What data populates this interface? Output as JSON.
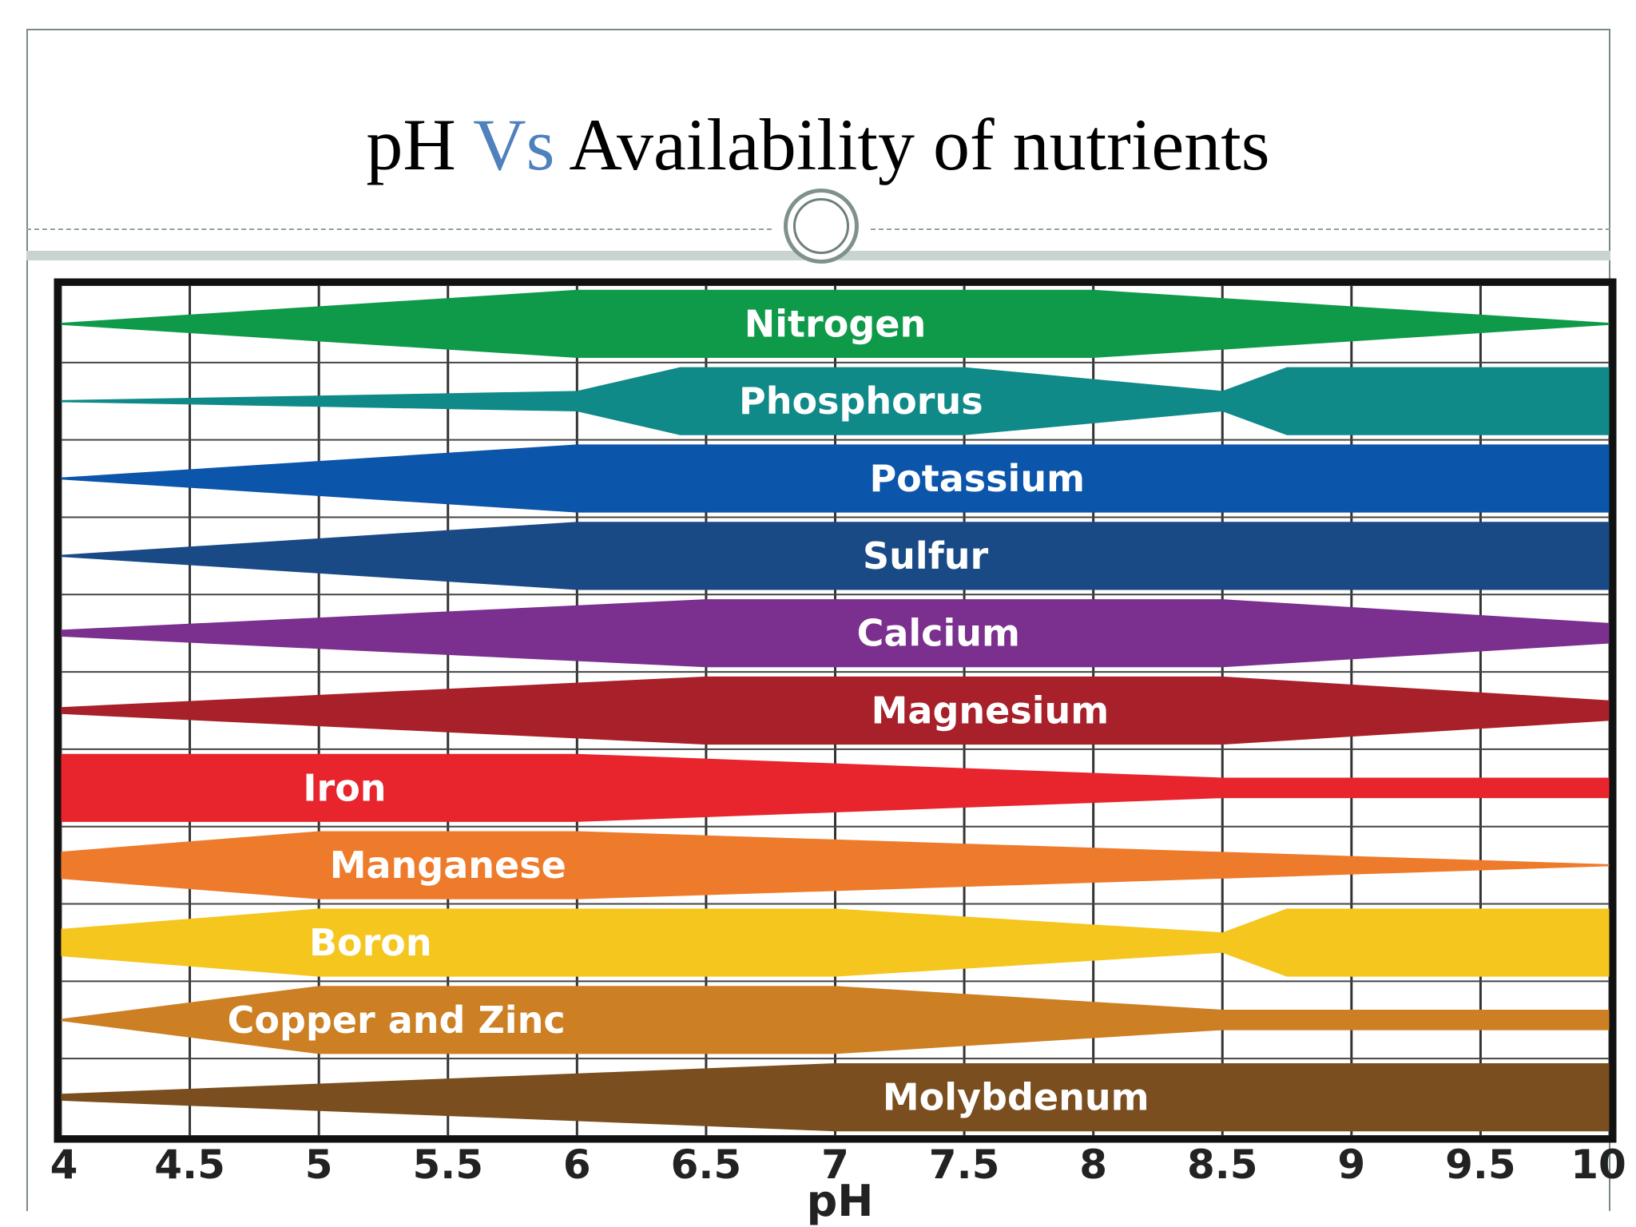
{
  "slide": {
    "title_part1": "pH ",
    "title_accent": "Vs",
    "title_part2": " Availability of nutrients",
    "accent_color": "#4f81bd"
  },
  "chart_data": {
    "type": "area",
    "xlabel": "pH",
    "xlim": [
      4,
      10
    ],
    "x_ticks": [
      4,
      4.5,
      5,
      5.5,
      6,
      6.5,
      7,
      7.5,
      8,
      8.5,
      9,
      9.5,
      10
    ],
    "x_tick_labels": [
      "4",
      "4.5",
      "5",
      "5.5",
      "6",
      "6.5",
      "7",
      "7.5",
      "8",
      "8.5",
      "9",
      "9.5",
      "10"
    ],
    "availability_scale": "relative width of band (0 = none, 1 = maximum)",
    "grid": true,
    "series": [
      {
        "name": "Nitrogen",
        "color": "#0f9a4a",
        "label_ph": 7.0,
        "points": [
          [
            4,
            0.03
          ],
          [
            6,
            1.0
          ],
          [
            8,
            1.0
          ],
          [
            10,
            0.03
          ]
        ]
      },
      {
        "name": "Phosphorus",
        "color": "#0f8a88",
        "label_ph": 7.1,
        "points": [
          [
            4,
            0.03
          ],
          [
            6,
            0.3
          ],
          [
            6.4,
            1.0
          ],
          [
            7.5,
            1.0
          ],
          [
            8.5,
            0.3
          ],
          [
            8.75,
            1.0
          ],
          [
            10,
            1.0
          ]
        ]
      },
      {
        "name": "Potassium",
        "color": "#0b55aa",
        "label_ph": 7.55,
        "points": [
          [
            4,
            0.03
          ],
          [
            6,
            1.0
          ],
          [
            10,
            1.0
          ]
        ]
      },
      {
        "name": "Sulfur",
        "color": "#1a4a86",
        "label_ph": 7.35,
        "points": [
          [
            4,
            0.03
          ],
          [
            6,
            1.0
          ],
          [
            10,
            1.0
          ]
        ]
      },
      {
        "name": "Calcium",
        "color": "#7b2f8e",
        "label_ph": 7.4,
        "points": [
          [
            4,
            0.1
          ],
          [
            6.5,
            1.0
          ],
          [
            8.5,
            1.0
          ],
          [
            10,
            0.3
          ]
        ]
      },
      {
        "name": "Magnesium",
        "color": "#a8202a",
        "label_ph": 7.6,
        "points": [
          [
            4,
            0.1
          ],
          [
            6.5,
            1.0
          ],
          [
            8.5,
            1.0
          ],
          [
            10,
            0.3
          ]
        ]
      },
      {
        "name": "Iron",
        "color": "#e8242c",
        "label_ph": 5.1,
        "points": [
          [
            4,
            1.0
          ],
          [
            6,
            1.0
          ],
          [
            8.5,
            0.3
          ],
          [
            10,
            0.3
          ]
        ]
      },
      {
        "name": "Manganese",
        "color": "#ee7b2c",
        "label_ph": 5.5,
        "points": [
          [
            4,
            0.4
          ],
          [
            5,
            1.0
          ],
          [
            6,
            1.0
          ],
          [
            10,
            0.03
          ]
        ]
      },
      {
        "name": "Boron",
        "color": "#f5c61e",
        "label_ph": 5.2,
        "points": [
          [
            4,
            0.4
          ],
          [
            5,
            1.0
          ],
          [
            7,
            1.0
          ],
          [
            8.5,
            0.3
          ],
          [
            8.75,
            1.0
          ],
          [
            10,
            1.0
          ]
        ]
      },
      {
        "name": "Copper and Zinc",
        "color": "#cd7f24",
        "label_ph": 5.3,
        "points": [
          [
            4,
            0.03
          ],
          [
            5,
            1.0
          ],
          [
            7,
            1.0
          ],
          [
            8.5,
            0.3
          ],
          [
            10,
            0.3
          ]
        ]
      },
      {
        "name": "Molybdenum",
        "color": "#7a4e1e",
        "label_ph": 7.7,
        "points": [
          [
            4,
            0.1
          ],
          [
            7,
            1.0
          ],
          [
            10,
            1.0
          ]
        ]
      }
    ]
  }
}
